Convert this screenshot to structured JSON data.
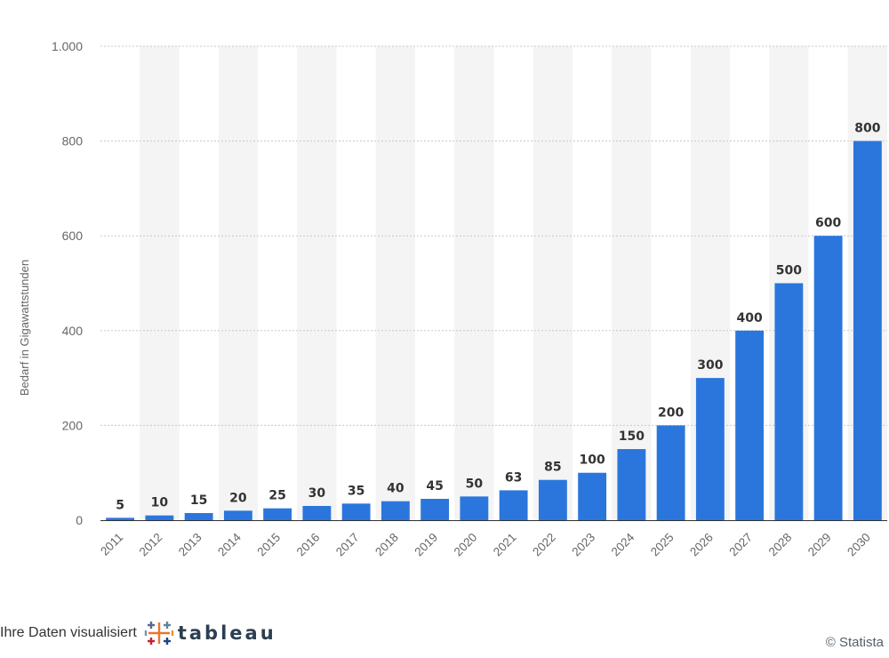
{
  "chart_data": {
    "type": "bar",
    "categories": [
      "2011",
      "2012",
      "2013",
      "2014",
      "2015",
      "2016",
      "2017",
      "2018",
      "2019",
      "2020",
      "2021",
      "2022",
      "2023",
      "2024",
      "2025",
      "2026",
      "2027",
      "2028",
      "2029",
      "2030"
    ],
    "values": [
      5,
      10,
      15,
      20,
      25,
      30,
      35,
      40,
      45,
      50,
      63,
      85,
      100,
      150,
      200,
      300,
      400,
      500,
      600,
      800
    ],
    "value_labels": [
      "5",
      "10",
      "15",
      "20",
      "25",
      "30",
      "35",
      "40",
      "45",
      "50",
      "63",
      "85",
      "100",
      "150",
      "200",
      "300",
      "400",
      "500",
      "600",
      "800"
    ],
    "ylabel": "Bedarf in Gigawattstunden",
    "xlabel": "",
    "ylim": [
      0,
      1000
    ],
    "yticks": [
      0,
      200,
      400,
      600,
      800,
      1000
    ],
    "ytick_labels": [
      "0",
      "200",
      "400",
      "600",
      "800",
      "1.000"
    ],
    "grid": true,
    "bar_color": "#2a76dd",
    "band_color": "#f4f4f4",
    "grid_color": "#c8c8c8"
  },
  "footer": {
    "visualized_text": "Ihre Daten visualisiert",
    "brand": "tableau",
    "credit": "© Statista"
  }
}
